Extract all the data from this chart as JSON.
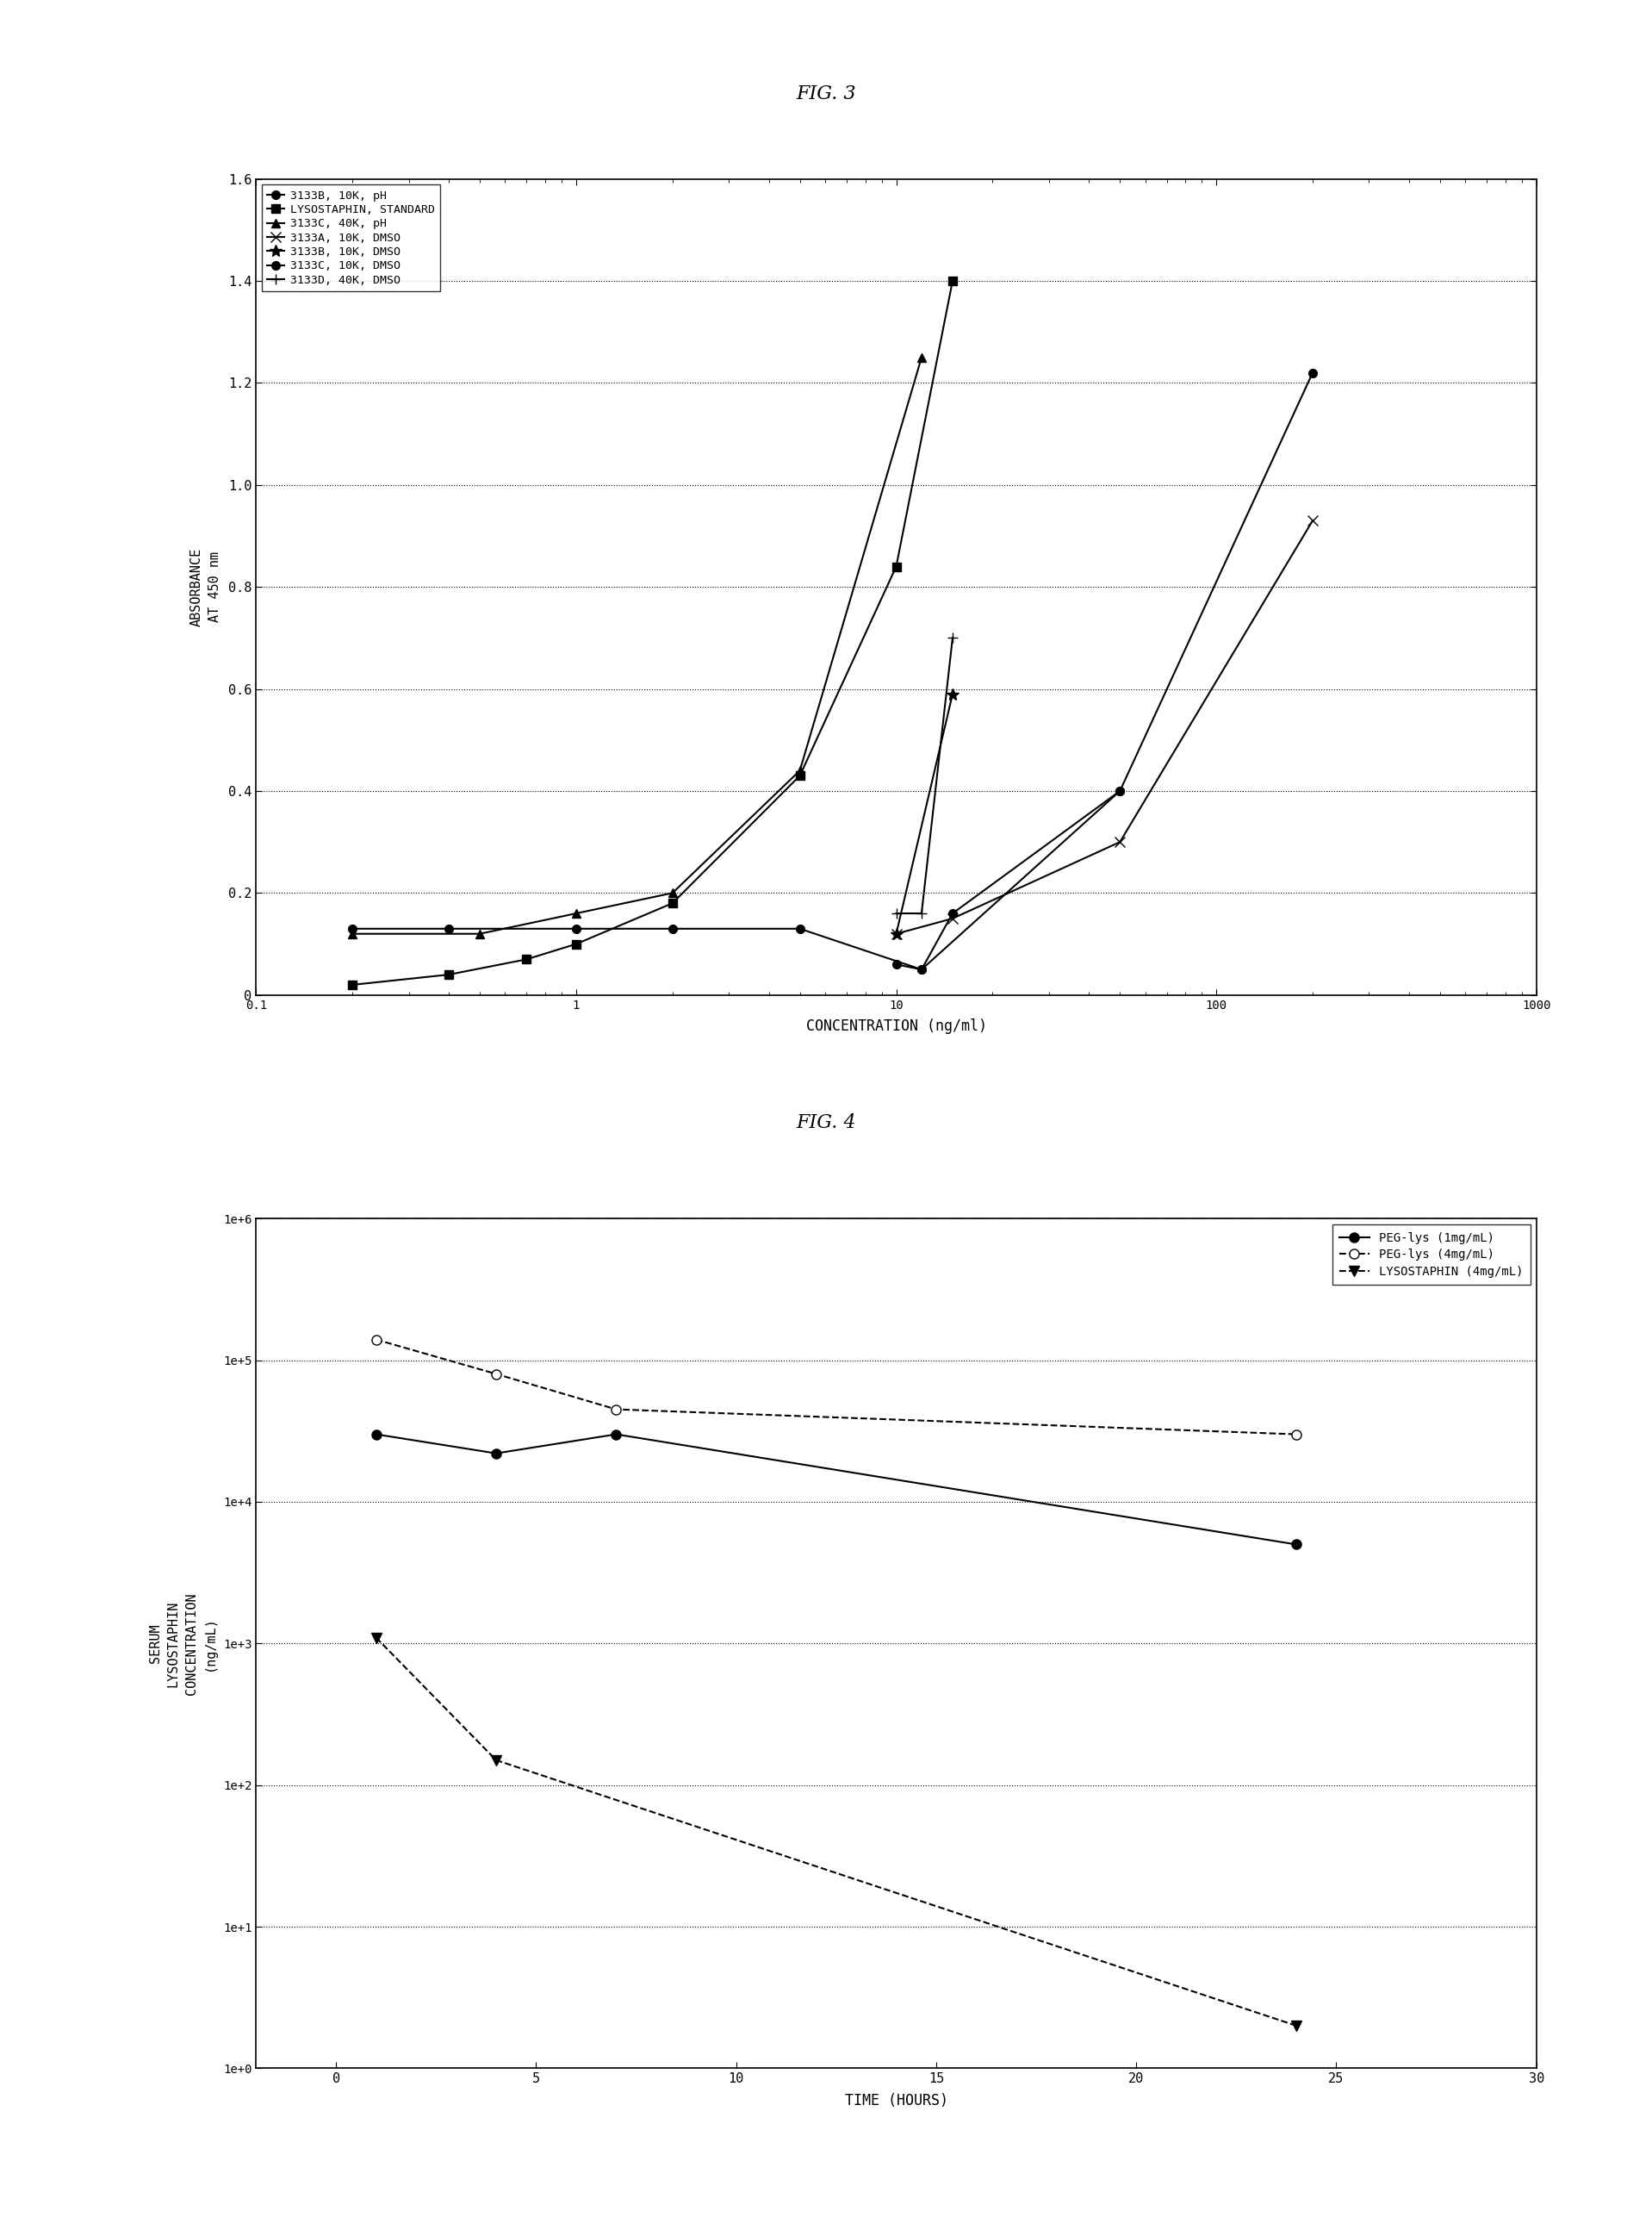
{
  "fig3": {
    "title": "FIG. 3",
    "xlabel": "CONCENTRATION (ng/ml)",
    "ylabel": "ABSORBANCE\nAT 450 nm",
    "xlim": [
      0.1,
      1000
    ],
    "ylim": [
      0,
      1.6
    ],
    "yticks": [
      0,
      0.2,
      0.4,
      0.6,
      0.8,
      1.0,
      1.2,
      1.4,
      1.6
    ],
    "series": [
      {
        "label": "3133B, 10K, pH",
        "marker": "o",
        "x": [
          0.2,
          0.4,
          1.0,
          2.0,
          5.0,
          10.0,
          15.0,
          50.0,
          200.0
        ],
        "y": [
          0.13,
          0.13,
          0.13,
          0.13,
          0.13,
          0.05,
          0.05,
          0.4,
          1.22
        ]
      },
      {
        "label": "LYSOSTAPHIN, STANDARD",
        "marker": "s",
        "x": [
          0.2,
          0.4,
          0.7,
          1.0,
          2.0,
          5.0,
          10.0,
          15.0
        ],
        "y": [
          0.02,
          0.04,
          0.07,
          0.1,
          0.18,
          0.43,
          0.84,
          1.4
        ]
      },
      {
        "label": "3133C, 40K, pH",
        "marker": "^",
        "x": [
          0.2,
          0.4,
          1.0,
          2.0,
          5.0,
          10.0,
          15.0,
          50.0
        ],
        "y": [
          0.12,
          0.12,
          0.16,
          0.19,
          0.43,
          0.58,
          1.25,
          0.0
        ]
      },
      {
        "label": "3133A, 10K, DMSO",
        "marker": "x",
        "x": [
          10.0,
          15.0,
          50.0,
          200.0
        ],
        "y": [
          0.12,
          0.16,
          0.3,
          0.93
        ]
      },
      {
        "label": "3133B, 10K, DMSO",
        "marker": "*",
        "x": [
          10.0,
          15.0,
          50.0
        ],
        "y": [
          0.12,
          0.16,
          0.59
        ]
      },
      {
        "label": "3133C, 10K, DMSO",
        "marker": "o",
        "filled": false,
        "x": [
          10.0,
          15.0,
          50.0
        ],
        "y": [
          0.05,
          0.4,
          0.0
        ]
      },
      {
        "label": "3133D, 40K, DMSO",
        "marker": "+",
        "x": [
          10.0,
          15.0,
          50.0
        ],
        "y": [
          0.16,
          0.7,
          0.0
        ]
      }
    ]
  },
  "fig4": {
    "title": "FIG. 4",
    "xlabel": "TIME (HOURS)",
    "ylabel": "SERUM\nLYSOSTAPHIN\nCONCENTRATION\n(ng/mL)",
    "xlim": [
      -2,
      30
    ],
    "xticks": [
      0,
      5,
      10,
      15,
      20,
      25,
      30
    ],
    "ylim_log": [
      1.0,
      1000000.0
    ],
    "ytick_vals": [
      1.0,
      10.0,
      100.0,
      1000.0,
      10000.0,
      100000.0,
      1000000.0
    ],
    "ytick_labels": [
      "1e+0",
      "1e+1",
      "1e+2",
      "1e+3",
      "1e+4",
      "1e+5",
      "1e+6"
    ],
    "series": [
      {
        "label": "PEG-lys (1mg/mL)",
        "marker": "o",
        "fillstyle": "full",
        "linestyle": "-",
        "x": [
          1.0,
          4.0,
          7.0,
          24.0
        ],
        "y": [
          30000.0,
          22000.0,
          30000.0,
          5000.0
        ]
      },
      {
        "label": "PEG-lys (4mg/mL)",
        "marker": "o",
        "fillstyle": "none",
        "linestyle": "--",
        "x": [
          1.0,
          4.0,
          7.0,
          24.0
        ],
        "y": [
          140000.0,
          80000.0,
          45000.0,
          30000.0
        ]
      },
      {
        "label": "LYSOSTAPHIN (4mg/mL)",
        "marker": "v",
        "fillstyle": "full",
        "linestyle": "--",
        "x": [
          1.0,
          4.0,
          24.0
        ],
        "y": [
          1100.0,
          150.0,
          2.0
        ]
      }
    ]
  }
}
